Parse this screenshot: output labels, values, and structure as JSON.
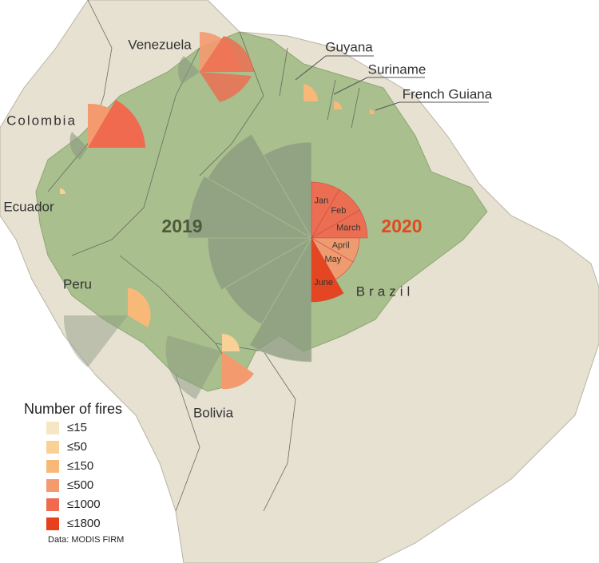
{
  "map": {
    "countries": [
      "Venezuela",
      "Colombia",
      "Ecuador",
      "Peru",
      "Bolivia",
      "Guyana",
      "Suriname",
      "French Guiana",
      "Brazil"
    ],
    "years": [
      "2019",
      "2020"
    ],
    "months": [
      "Jan",
      "Feb",
      "March",
      "April",
      "May",
      "June"
    ],
    "brazil_2020_bins": [
      4,
      4,
      4,
      3,
      3,
      5
    ],
    "legend": {
      "title": "Number of fires",
      "items": [
        {
          "label": "≤15",
          "color": "#f7e6c4"
        },
        {
          "label": "≤50",
          "color": "#f9d196"
        },
        {
          "label": "≤150",
          "color": "#f8b878"
        },
        {
          "label": "≤500",
          "color": "#f39a6f"
        },
        {
          "label": "≤1000",
          "color": "#ef6a4f"
        },
        {
          "label": "≤1800",
          "color": "#e8401c"
        }
      ]
    },
    "source": "Data: MODIS FIRM"
  }
}
